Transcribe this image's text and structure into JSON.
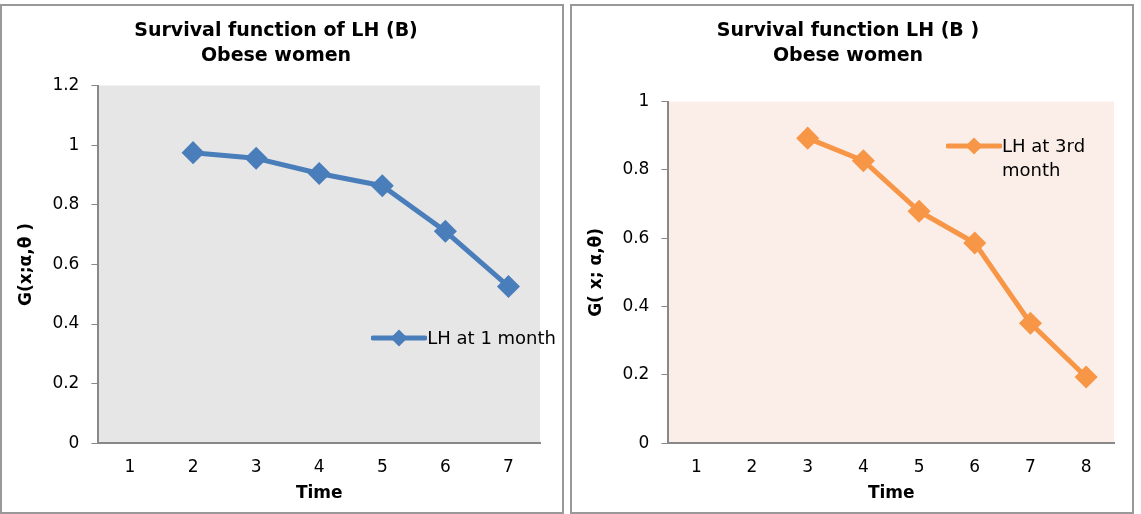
{
  "chart_data": [
    {
      "type": "line",
      "title": "Survival function of LH (B)",
      "subtitle": "Obese women",
      "xlabel": "Time",
      "ylabel": "G(x;α,θ )",
      "categories": [
        "1",
        "2",
        "3",
        "4",
        "5",
        "6",
        "7"
      ],
      "series": [
        {
          "name": "LH  at 1 month",
          "color": "#4a7ebb",
          "values": [
            null,
            0.975,
            0.956,
            0.905,
            0.864,
            0.711,
            0.526
          ]
        }
      ],
      "ylim": [
        0,
        1.2
      ],
      "yticks": [
        0,
        0.2,
        0.4,
        0.6,
        0.8,
        1,
        1.2
      ],
      "grid": false,
      "legend": "right",
      "marker": "diamond",
      "line_style": "solid"
    },
    {
      "type": "line",
      "title": "Survival function LH (B )",
      "subtitle": "Obese women",
      "xlabel": "Time",
      "ylabel": "G( x; α,θ)",
      "categories": [
        "1",
        "2",
        "3",
        "4",
        "5",
        "6",
        "7",
        "8"
      ],
      "series": [
        {
          "name": "LH  at 3rd month",
          "color": "#f79646",
          "values": [
            null,
            null,
            0.893,
            0.827,
            0.679,
            0.586,
            0.351,
            0.194
          ]
        }
      ],
      "ylim": [
        0,
        1
      ],
      "yticks": [
        0,
        0.2,
        0.4,
        0.6,
        0.8,
        1
      ],
      "grid": false,
      "legend": "top right",
      "marker": "diamond",
      "line_style": "solid"
    }
  ]
}
